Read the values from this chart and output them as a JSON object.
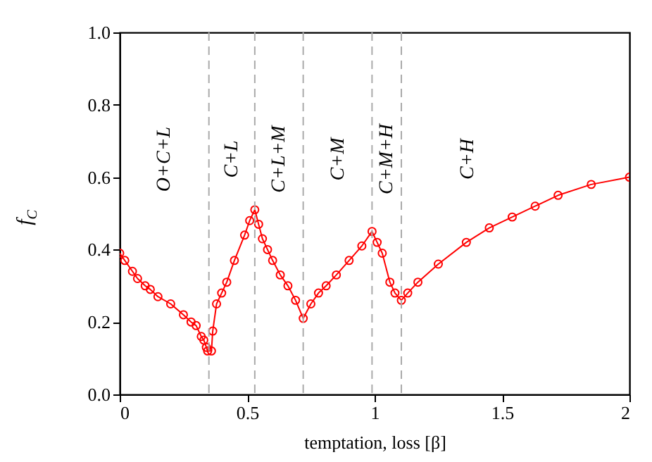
{
  "chart_data": {
    "type": "line",
    "xlabel": "temptation, loss [β]",
    "ylabel": "f$_{C}$",
    "x": [
      0,
      0.02,
      0.05,
      0.07,
      0.1,
      0.12,
      0.15,
      0.2,
      0.25,
      0.28,
      0.3,
      0.32,
      0.33,
      0.34,
      0.345,
      0.36,
      0.365,
      0.38,
      0.4,
      0.42,
      0.45,
      0.49,
      0.51,
      0.53,
      0.545,
      0.56,
      0.58,
      0.6,
      0.63,
      0.66,
      0.69,
      0.72,
      0.75,
      0.78,
      0.81,
      0.85,
      0.9,
      0.95,
      0.99,
      1.01,
      1.03,
      1.06,
      1.08,
      1.105,
      1.13,
      1.17,
      1.25,
      1.36,
      1.45,
      1.54,
      1.63,
      1.72,
      1.85,
      2.0
    ],
    "series": [
      {
        "color": "#ff0000",
        "values": [
          0.39,
          0.37,
          0.34,
          0.32,
          0.3,
          0.29,
          0.27,
          0.25,
          0.22,
          0.2,
          0.19,
          0.16,
          0.15,
          0.13,
          0.12,
          0.12,
          0.175,
          0.25,
          0.28,
          0.31,
          0.37,
          0.44,
          0.48,
          0.51,
          0.47,
          0.43,
          0.4,
          0.37,
          0.33,
          0.3,
          0.26,
          0.21,
          0.25,
          0.28,
          0.3,
          0.33,
          0.37,
          0.41,
          0.45,
          0.42,
          0.39,
          0.31,
          0.28,
          0.26,
          0.28,
          0.31,
          0.36,
          0.42,
          0.46,
          0.49,
          0.52,
          0.55,
          0.58,
          0.6
        ]
      }
    ],
    "xlim": [
      0,
      2
    ],
    "ylim": [
      0,
      1
    ],
    "xticks": [
      0,
      0.5,
      1,
      1.5,
      2
    ],
    "yticks": [
      {
        "value": 0,
        "label": "0.0"
      },
      {
        "value": 0.2,
        "label": "0.2"
      },
      {
        "value": 0.4,
        "label": "0.4"
      },
      {
        "value": 0.6,
        "label": "0.6"
      },
      {
        "value": 0.8,
        "label": "0.8"
      },
      {
        "value": 1,
        "label": "1.0"
      }
    ],
    "ref_lines": [
      {
        "axis": "x",
        "value": 0.35,
        "color": "#aaaaaa",
        "line_style": "dashed"
      },
      {
        "axis": "x",
        "value": 0.53,
        "color": "#aaaaaa",
        "line_style": "dashed"
      },
      {
        "axis": "x",
        "value": 0.72,
        "color": "#aaaaaa",
        "line_style": "dashed"
      },
      {
        "axis": "x",
        "value": 0.99,
        "color": "#aaaaaa",
        "line_style": "dashed"
      },
      {
        "axis": "x",
        "value": 1.105,
        "color": "#aaaaaa",
        "line_style": "dashed"
      }
    ],
    "annotations": [
      "O+C+L",
      "C+L",
      "C+L+M",
      "C+M",
      "C+M+H",
      "C+H"
    ],
    "grid": false,
    "marker": "circle",
    "line_style": "solid"
  }
}
